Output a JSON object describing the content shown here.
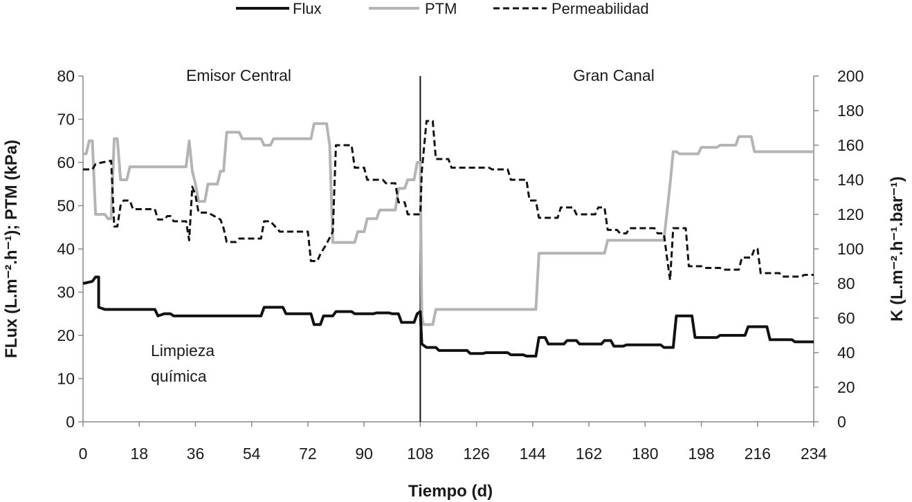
{
  "chart_data": {
    "type": "line",
    "xlabel": "Tiempo (d)",
    "ylabel_left": "FLux (L.m⁻².h⁻¹); PTM (kPa)",
    "ylabel_right": "K (L.m⁻².h⁻¹.bar⁻¹)",
    "xlim": [
      0,
      234
    ],
    "ylim_left": [
      0,
      80
    ],
    "ylim_right": [
      0,
      200
    ],
    "x_ticks": [
      "0",
      "18",
      "36",
      "54",
      "72",
      "90",
      "108",
      "126",
      "144",
      "162",
      "180",
      "198",
      "216",
      "234"
    ],
    "y_ticks_left": [
      "0",
      "10",
      "20",
      "30",
      "40",
      "50",
      "60",
      "70",
      "80"
    ],
    "y_ticks_right": [
      "0",
      "20",
      "40",
      "60",
      "80",
      "100",
      "120",
      "140",
      "160",
      "180",
      "200"
    ],
    "legend_position": "top",
    "grid": false,
    "annotations": [
      {
        "text": "Emisor Central"
      },
      {
        "text": "Gran Canal"
      },
      {
        "text": "Limpieza"
      },
      {
        "text": "química"
      }
    ],
    "vertical_marker_x": 108,
    "series": [
      {
        "name": "Flux",
        "axis": "left",
        "style": "solid",
        "color": "#111111",
        "points": [
          [
            0,
            32
          ],
          [
            3,
            32.5
          ],
          [
            4,
            33.5
          ],
          [
            5,
            33.5
          ],
          [
            5,
            26.5
          ],
          [
            7,
            26
          ],
          [
            23,
            26
          ],
          [
            24,
            24.5
          ],
          [
            26,
            25
          ],
          [
            28,
            25
          ],
          [
            29,
            24.5
          ],
          [
            57,
            24.5
          ],
          [
            58,
            26.5
          ],
          [
            64,
            26.5
          ],
          [
            65,
            25
          ],
          [
            73,
            25
          ],
          [
            74,
            22.5
          ],
          [
            76,
            22.5
          ],
          [
            77,
            24.5
          ],
          [
            80,
            24.5
          ],
          [
            81,
            25.5
          ],
          [
            86,
            25.5
          ],
          [
            87,
            25
          ],
          [
            93,
            25
          ],
          [
            94,
            25.2
          ],
          [
            98,
            25.2
          ],
          [
            99,
            25
          ],
          [
            101,
            25
          ],
          [
            102,
            23
          ],
          [
            106,
            23
          ],
          [
            107,
            25
          ],
          [
            108,
            25.5
          ],
          [
            108.5,
            18
          ],
          [
            110,
            17.2
          ],
          [
            113,
            17.2
          ],
          [
            114,
            16.5
          ],
          [
            123,
            16.5
          ],
          [
            124,
            15.8
          ],
          [
            128,
            15.8
          ],
          [
            129,
            16
          ],
          [
            136,
            16
          ],
          [
            137,
            15.5
          ],
          [
            141,
            15.5
          ],
          [
            142,
            15.2
          ],
          [
            145,
            15.2
          ],
          [
            146,
            19.5
          ],
          [
            148,
            19.5
          ],
          [
            149,
            18
          ],
          [
            154,
            18
          ],
          [
            155,
            18.8
          ],
          [
            158,
            18.8
          ],
          [
            159,
            18
          ],
          [
            166,
            18
          ],
          [
            167,
            18.8
          ],
          [
            169,
            18.8
          ],
          [
            170,
            17.5
          ],
          [
            173,
            17.5
          ],
          [
            174,
            17.8
          ],
          [
            185,
            17.8
          ],
          [
            186,
            17.2
          ],
          [
            189,
            17.2
          ],
          [
            190,
            24.5
          ],
          [
            195,
            24.5
          ],
          [
            196,
            19.5
          ],
          [
            203,
            19.5
          ],
          [
            204,
            20
          ],
          [
            212,
            20
          ],
          [
            213,
            22
          ],
          [
            219,
            22
          ],
          [
            220,
            19
          ],
          [
            227,
            19
          ],
          [
            228,
            18.5
          ],
          [
            234,
            18.5
          ]
        ]
      },
      {
        "name": "PTM",
        "axis": "left",
        "style": "solid",
        "color": "#b4b4b4",
        "points": [
          [
            0,
            62
          ],
          [
            1,
            62
          ],
          [
            2,
            65
          ],
          [
            3,
            65
          ],
          [
            4,
            48
          ],
          [
            7,
            48
          ],
          [
            8,
            47
          ],
          [
            9,
            47
          ],
          [
            10,
            65.5
          ],
          [
            11,
            65.5
          ],
          [
            12,
            56
          ],
          [
            14,
            56
          ],
          [
            15,
            59
          ],
          [
            33,
            59
          ],
          [
            34,
            65
          ],
          [
            35,
            58
          ],
          [
            36,
            55
          ],
          [
            37,
            51
          ],
          [
            39,
            51
          ],
          [
            40,
            55
          ],
          [
            43,
            55
          ],
          [
            44,
            58
          ],
          [
            45,
            58
          ],
          [
            46,
            67
          ],
          [
            50,
            67
          ],
          [
            51,
            65.5
          ],
          [
            57,
            65.5
          ],
          [
            58,
            64
          ],
          [
            60,
            64
          ],
          [
            61,
            65.5
          ],
          [
            73,
            65.5
          ],
          [
            74,
            69
          ],
          [
            78,
            69
          ],
          [
            79,
            64
          ],
          [
            80,
            41.5
          ],
          [
            87,
            41.5
          ],
          [
            88,
            44
          ],
          [
            90,
            44
          ],
          [
            91,
            47
          ],
          [
            94,
            47
          ],
          [
            95,
            49
          ],
          [
            100,
            49
          ],
          [
            101,
            54
          ],
          [
            103,
            54
          ],
          [
            104,
            56
          ],
          [
            106,
            56
          ],
          [
            107,
            60
          ],
          [
            108,
            60
          ],
          [
            108.5,
            24.5
          ],
          [
            109,
            22.5
          ],
          [
            112,
            22.5
          ],
          [
            113,
            26
          ],
          [
            145,
            26
          ],
          [
            146,
            39
          ],
          [
            167,
            39
          ],
          [
            168,
            42
          ],
          [
            186,
            42
          ],
          [
            188,
            55
          ],
          [
            189,
            62.5
          ],
          [
            190,
            62.5
          ],
          [
            191,
            62
          ],
          [
            197,
            62
          ],
          [
            198,
            63.5
          ],
          [
            203,
            63.5
          ],
          [
            204,
            64
          ],
          [
            209,
            64
          ],
          [
            210,
            66
          ],
          [
            214,
            66
          ],
          [
            215,
            62.5
          ],
          [
            234,
            62.5
          ]
        ]
      },
      {
        "name": "Permeabilidad",
        "axis": "right",
        "style": "dashed",
        "color": "#111111",
        "points": [
          [
            0,
            146
          ],
          [
            3,
            146
          ],
          [
            4,
            149
          ],
          [
            6,
            150
          ],
          [
            9,
            151
          ],
          [
            10,
            113
          ],
          [
            11,
            113
          ],
          [
            12,
            125
          ],
          [
            13,
            128
          ],
          [
            15,
            128
          ],
          [
            16,
            123
          ],
          [
            23,
            123
          ],
          [
            24,
            117
          ],
          [
            26,
            117
          ],
          [
            27,
            119
          ],
          [
            28,
            119
          ],
          [
            29,
            116
          ],
          [
            33,
            116
          ],
          [
            34,
            105
          ],
          [
            35,
            136
          ],
          [
            36,
            131
          ],
          [
            37,
            121
          ],
          [
            40,
            121
          ],
          [
            43,
            118
          ],
          [
            44,
            117
          ],
          [
            45,
            112
          ],
          [
            46,
            104
          ],
          [
            49,
            104
          ],
          [
            50,
            106
          ],
          [
            57,
            106
          ],
          [
            58,
            116
          ],
          [
            60,
            116
          ],
          [
            61,
            114
          ],
          [
            63,
            110
          ],
          [
            72,
            110
          ],
          [
            73,
            93
          ],
          [
            75,
            93
          ],
          [
            76,
            97
          ],
          [
            78,
            103
          ],
          [
            80,
            110
          ],
          [
            81,
            160
          ],
          [
            86,
            160
          ],
          [
            87,
            147
          ],
          [
            90,
            147
          ],
          [
            91,
            140
          ],
          [
            96,
            140
          ],
          [
            97,
            138
          ],
          [
            100,
            138
          ],
          [
            101,
            127
          ],
          [
            103,
            127
          ],
          [
            104,
            120
          ],
          [
            108,
            120
          ],
          [
            108.5,
            145
          ],
          [
            110,
            174
          ],
          [
            112,
            174
          ],
          [
            113,
            152
          ],
          [
            117,
            152
          ],
          [
            118,
            147
          ],
          [
            130,
            147
          ],
          [
            131,
            146
          ],
          [
            136,
            146
          ],
          [
            137,
            140
          ],
          [
            142,
            140
          ],
          [
            143,
            128
          ],
          [
            145,
            128
          ],
          [
            146,
            118
          ],
          [
            152,
            118
          ],
          [
            153,
            124
          ],
          [
            157,
            124
          ],
          [
            158,
            120
          ],
          [
            164,
            120
          ],
          [
            165,
            124
          ],
          [
            167,
            124
          ],
          [
            168,
            111
          ],
          [
            171,
            111
          ],
          [
            172,
            109
          ],
          [
            174,
            109
          ],
          [
            175,
            112
          ],
          [
            183,
            112
          ],
          [
            184,
            109
          ],
          [
            186,
            109
          ],
          [
            187,
            95
          ],
          [
            188,
            82
          ],
          [
            189,
            112
          ],
          [
            193,
            112
          ],
          [
            194,
            90
          ],
          [
            198,
            90
          ],
          [
            199,
            89
          ],
          [
            204,
            89
          ],
          [
            205,
            88
          ],
          [
            210,
            88
          ],
          [
            211,
            95
          ],
          [
            214,
            95
          ],
          [
            215,
            100
          ],
          [
            216,
            100
          ],
          [
            217,
            86
          ],
          [
            223,
            86
          ],
          [
            224,
            84
          ],
          [
            230,
            84
          ],
          [
            231,
            85
          ],
          [
            234,
            85
          ]
        ]
      }
    ]
  }
}
